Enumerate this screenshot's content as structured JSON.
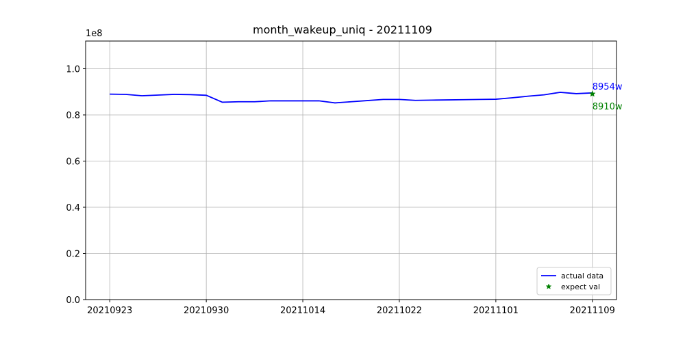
{
  "chart_data": {
    "type": "line",
    "title": "month_wakeup_uniq - 20211109",
    "y_offset_label": "1e8",
    "xlabel": "",
    "ylabel": "",
    "ylim": [
      0,
      1.12
    ],
    "yticks": [
      0.0,
      0.2,
      0.4,
      0.6,
      0.8,
      1.0
    ],
    "ytick_labels": [
      "0.0",
      "0.2",
      "0.4",
      "0.6",
      "0.8",
      "1.0"
    ],
    "xticks": [
      0,
      6,
      12,
      18,
      24,
      30
    ],
    "xtick_labels": [
      "20210923",
      "20210930",
      "20211014",
      "20211022",
      "20211101",
      "20211109"
    ],
    "xlim": [
      -1.5,
      31.5
    ],
    "grid": true,
    "legend_position": "lower right",
    "series": [
      {
        "name": "actual data",
        "color": "#0000ff",
        "style": "line",
        "x": [
          0,
          1,
          2,
          3,
          4,
          5,
          6,
          7,
          8,
          9,
          10,
          11,
          12,
          13,
          14,
          15,
          16,
          17,
          18,
          19,
          20,
          21,
          22,
          23,
          24,
          25,
          26,
          27,
          28,
          29,
          30
        ],
        "values": [
          0.89,
          0.889,
          0.883,
          0.886,
          0.889,
          0.888,
          0.885,
          0.855,
          0.857,
          0.857,
          0.861,
          0.861,
          0.861,
          0.861,
          0.852,
          0.857,
          0.862,
          0.867,
          0.867,
          0.863,
          0.864,
          0.865,
          0.866,
          0.867,
          0.868,
          0.874,
          0.881,
          0.887,
          0.898,
          0.892,
          0.8954
        ]
      },
      {
        "name": "expect val",
        "color": "#008000",
        "style": "star-marker",
        "x": [
          30
        ],
        "values": [
          0.891
        ]
      }
    ],
    "annotations": [
      {
        "text": "8954w",
        "color": "#0000ff",
        "x": 30,
        "y": 0.925
      },
      {
        "text": "8910w",
        "color": "#008000",
        "x": 30,
        "y": 0.838
      }
    ]
  }
}
